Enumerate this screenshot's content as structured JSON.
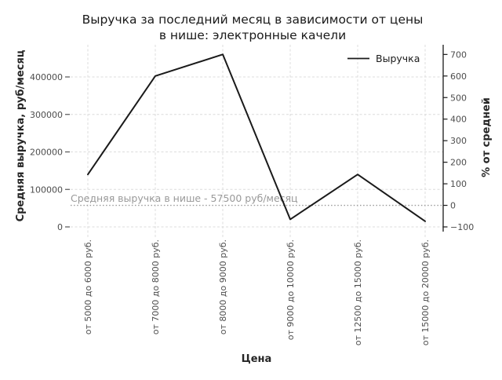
{
  "chart_data": {
    "type": "line",
    "title": "Выручка за последний месяц в зависимости от цены в нише: электронные качели",
    "title_line1": "Выручка за последний месяц в зависимости от цены",
    "title_line2": "в нише: электронные качели",
    "xlabel": "Цена",
    "ylabel_left": "Средняя выручка, руб/месяц",
    "ylabel_right": "% от средней",
    "categories": [
      "от 5000 до 6000 руб.",
      "от 7000 до 8000 руб.",
      "от 8000 до 9000 руб.",
      "от 9000 до 10000 руб.",
      "от 12500 до 15000 руб.",
      "от 15000 до 20000 руб."
    ],
    "series": [
      {
        "name": "Выручка",
        "values": [
          140000,
          402500,
          460000,
          20000,
          140000,
          15000
        ],
        "percent_of_average": [
          143,
          600,
          700,
          -65,
          143,
          -74
        ],
        "color": "#1a1a1a"
      }
    ],
    "left_axis": {
      "ticks": [
        0,
        100000,
        200000,
        300000,
        400000
      ],
      "range_min": -13000,
      "range_max": 486000
    },
    "right_axis": {
      "ticks": [
        -100,
        0,
        100,
        200,
        300,
        400,
        500,
        600,
        700
      ]
    },
    "average_line": {
      "value": 57500,
      "label": "Средняя выручка в нише - 57500 руб/месяц",
      "style": "dotted",
      "color": "#999999"
    },
    "legend": {
      "position": "upper right",
      "entries": [
        {
          "label": "Выручка",
          "color": "#1a1a1a"
        }
      ]
    },
    "grid": true,
    "colors": {
      "line": "#1a1a1a",
      "grid": "#dcdcdc",
      "spine": "#1a1a1a",
      "tick": "#555555",
      "tick_label": "#4d4d4d",
      "text": "#1a1a1a",
      "annotation": "#999999",
      "background": "#ffffff"
    }
  }
}
